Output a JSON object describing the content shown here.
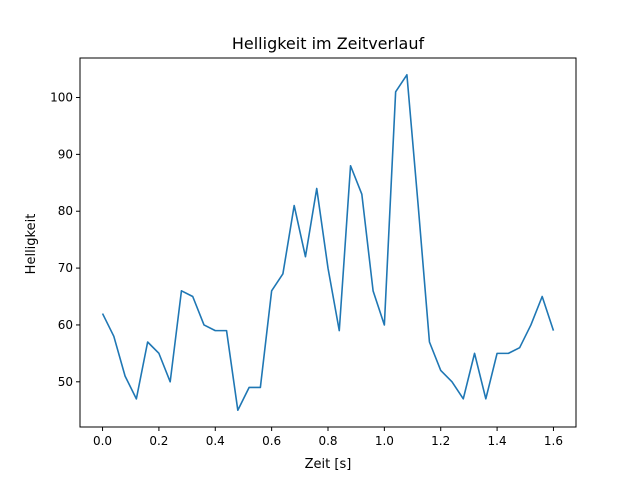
{
  "chart_data": {
    "type": "line",
    "title": "Helligkeit im Zeitverlauf",
    "xlabel": "Zeit [s]",
    "ylabel": "Helligkeit",
    "xlim": [
      -0.08,
      1.68
    ],
    "ylim": [
      42.05,
      106.95
    ],
    "xticks": [
      0.0,
      0.2,
      0.4,
      0.6,
      0.8,
      1.0,
      1.2,
      1.4,
      1.6
    ],
    "xtick_labels": [
      "0.0",
      "0.2",
      "0.4",
      "0.6",
      "0.8",
      "1.0",
      "1.2",
      "1.4",
      "1.6"
    ],
    "yticks": [
      50,
      60,
      70,
      80,
      90,
      100
    ],
    "ytick_labels": [
      "50",
      "60",
      "70",
      "80",
      "90",
      "100"
    ],
    "grid": false,
    "color": "#1f77b4",
    "series": [
      {
        "x": [
          0.0,
          0.04,
          0.08,
          0.12,
          0.16,
          0.2,
          0.24,
          0.28,
          0.32,
          0.36,
          0.4,
          0.44,
          0.48,
          0.52,
          0.56,
          0.6,
          0.64,
          0.68,
          0.72,
          0.76,
          0.8,
          0.84,
          0.88,
          0.92,
          0.96,
          1.0,
          1.04,
          1.08,
          1.12,
          1.16,
          1.2,
          1.24,
          1.28,
          1.32,
          1.36,
          1.4,
          1.44,
          1.48,
          1.52,
          1.56,
          1.6
        ],
        "values": [
          62,
          58,
          51,
          47,
          57,
          55,
          50,
          66,
          65,
          60,
          59,
          59,
          45,
          49,
          49,
          66,
          69,
          81,
          72,
          84,
          70,
          59,
          88,
          83,
          66,
          60,
          101,
          104,
          81,
          57,
          52,
          50,
          47,
          55,
          47,
          55,
          55,
          56,
          60,
          65,
          59
        ]
      }
    ]
  }
}
